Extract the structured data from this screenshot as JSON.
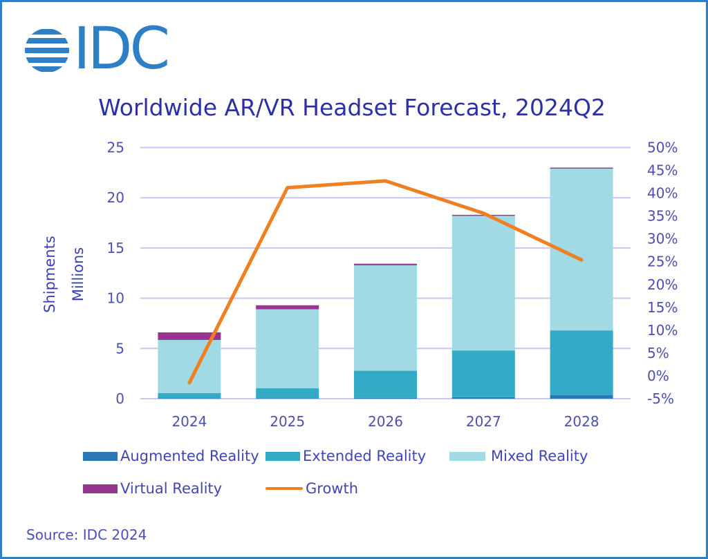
{
  "brand": {
    "logo_text": "IDC",
    "logo_icon": "striped-globe-icon",
    "brand_color": "#2f7fc7"
  },
  "source": "Source: IDC 2024",
  "chart_data": {
    "type": "bar",
    "stacked": true,
    "title": "Worldwide AR/VR Headset Forecast, 2024Q2",
    "xlabel": "",
    "ylabel": [
      "Shipments",
      "Millions"
    ],
    "y2label": "",
    "categories": [
      "2024",
      "2025",
      "2026",
      "2027",
      "2028"
    ],
    "ylim": [
      0,
      25
    ],
    "yticks": [
      0,
      5,
      10,
      15,
      20,
      25
    ],
    "y2lim": [
      -5,
      50
    ],
    "y2ticks": [
      -5,
      0,
      5,
      10,
      15,
      20,
      25,
      30,
      35,
      40,
      45,
      50
    ],
    "y2tick_suffix": "%",
    "grid": true,
    "legend_position": "bottom",
    "series": [
      {
        "name": "Augmented Reality",
        "type": "bar",
        "axis": "left",
        "color": "#2a78b8",
        "values": [
          0.05,
          0.05,
          0.08,
          0.15,
          0.35
        ]
      },
      {
        "name": "Extended Reality",
        "type": "bar",
        "axis": "left",
        "color": "#33abc6",
        "values": [
          0.5,
          1.0,
          2.7,
          4.65,
          6.45
        ]
      },
      {
        "name": "Mixed Reality",
        "type": "bar",
        "axis": "left",
        "color": "#a1d9e4",
        "values": [
          5.3,
          7.85,
          10.5,
          13.4,
          16.1
        ]
      },
      {
        "name": "Virtual Reality",
        "type": "bar",
        "axis": "left",
        "color": "#96358f",
        "values": [
          0.75,
          0.4,
          0.15,
          0.1,
          0.1
        ]
      },
      {
        "name": "Growth",
        "type": "line",
        "axis": "right",
        "color": "#f07f22",
        "values": [
          -1.5,
          41.2,
          42.7,
          35.6,
          25.4
        ]
      }
    ],
    "gridline_color": "#c8c4f4"
  }
}
